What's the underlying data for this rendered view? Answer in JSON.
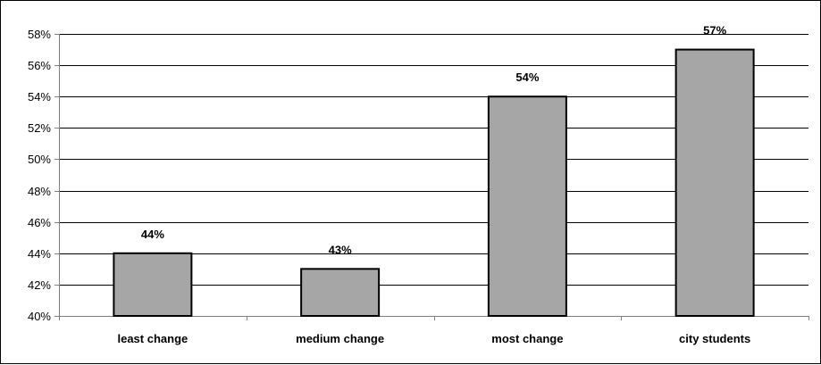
{
  "chart_data": {
    "type": "bar",
    "categories": [
      "least change",
      "medium change",
      "most change",
      "city students"
    ],
    "values": [
      44,
      43,
      54,
      57
    ],
    "value_labels": [
      "44%",
      "43%",
      "54%",
      "57%"
    ],
    "ylim": [
      40,
      58
    ],
    "y_ticks": [
      40,
      42,
      44,
      46,
      48,
      50,
      52,
      54,
      56,
      58
    ],
    "y_tick_labels": [
      "40%",
      "42%",
      "44%",
      "46%",
      "48%",
      "50%",
      "52%",
      "54%",
      "56%",
      "58%"
    ],
    "grid": true,
    "legend": "none",
    "title": "",
    "xlabel": "",
    "ylabel": "",
    "colors": {
      "bar_fill": "#a6a6a6",
      "bar_stroke": "#000000",
      "grid": "#000000",
      "axis": "#808080"
    }
  }
}
